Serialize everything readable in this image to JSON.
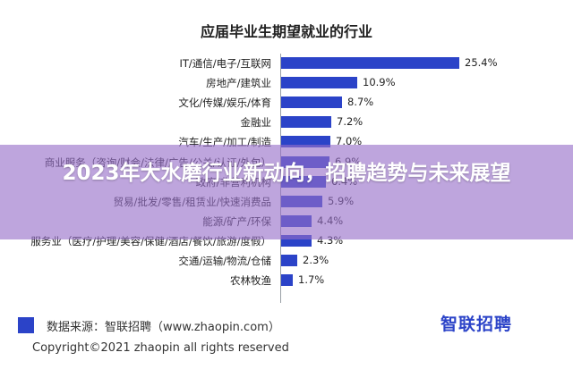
{
  "chart_data": {
    "type": "bar",
    "orientation": "horizontal",
    "title": "应届毕业生期望就业的行业",
    "categories": [
      "IT/通信/电子/互联网",
      "房地产/建筑业",
      "文化/传媒/娱乐/体育",
      "金融业",
      "汽车/生产/加工/制造",
      "商业服务（咨询/财会/法律/广告/公关/认证/外包）",
      "政府/非营利机构",
      "贸易/批发/零售/租赁业/快速消费品",
      "能源/矿产/环保",
      "服务业（医疗/护理/美容/保健/酒店/餐饮/旅游/度假）",
      "交通/运输/物流/仓储",
      "农林牧渔"
    ],
    "values": [
      25.4,
      10.9,
      8.7,
      7.2,
      7.0,
      6.9,
      6.4,
      5.9,
      4.4,
      4.3,
      2.3,
      1.7
    ],
    "value_labels": [
      "25.4%",
      "10.9%",
      "8.7%",
      "7.2%",
      "7.0%",
      "6.9%",
      "6.4%",
      "5.9%",
      "4.4%",
      "4.3%",
      "2.3%",
      "1.7%"
    ],
    "xlim": [
      0,
      30
    ],
    "grid": false,
    "bar_color": "#2b43c8"
  },
  "source": {
    "text": "数据来源：智联招聘（www.zhaopin.com）",
    "logo_text": "智联招聘"
  },
  "copyright": "Copyright©2021 zhaopin all rights reserved",
  "overlay": {
    "title": "2023年大水磨行业新动向，招聘趋势与未来展望",
    "band_color": "#966ec8"
  }
}
